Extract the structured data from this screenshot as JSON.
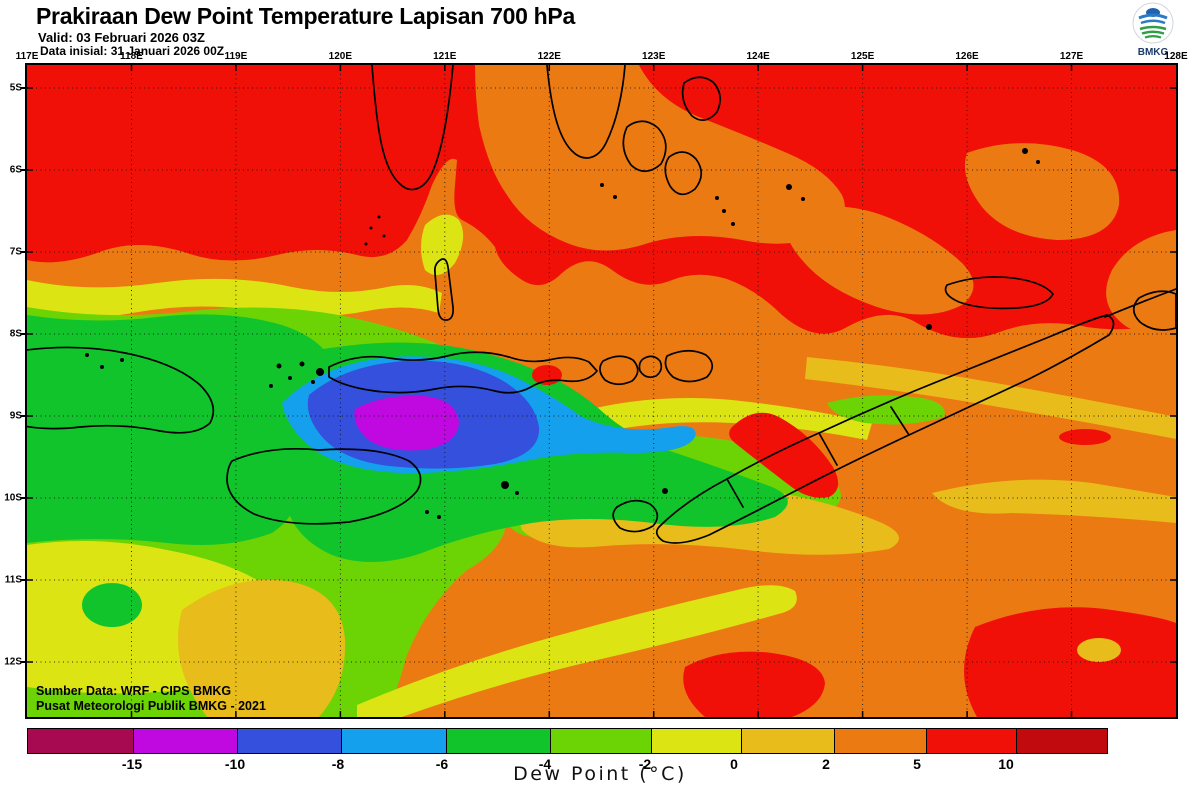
{
  "header": {
    "title": "Prakiraan Dew Point Temperature Lapisan 700 hPa",
    "valid_line": "Valid: 03 Februari 2026 03Z",
    "init_line": "Data inisial: 31 Januari 2026 00Z"
  },
  "logo": {
    "label": "BMKG"
  },
  "map": {
    "lon_ticks": [
      "117E",
      "118E",
      "119E",
      "120E",
      "121E",
      "122E",
      "123E",
      "124E",
      "125E",
      "126E",
      "127E",
      "128E"
    ],
    "lat_ticks": [
      "5S",
      "6S",
      "7S",
      "8S",
      "9S",
      "10S",
      "11S",
      "12S"
    ],
    "source_line1": "Sumber Data: WRF - CIPS BMKG",
    "source_line2": "Pusat Meteorologi Publik BMKG - 2021"
  },
  "colorbar": {
    "label": "Dew Point (°C)",
    "ticks": [
      "-15",
      "-10",
      "-8",
      "-6",
      "-4",
      "-2",
      "0",
      "2",
      "5",
      "10"
    ],
    "segment_colors": [
      "#A80A52",
      "#C008E0",
      "#3450DC",
      "#14A0EC",
      "#12C42C",
      "#6CD404",
      "#DCE414",
      "#E8BC1A",
      "#EC7A12",
      "#F01008",
      "#C00A0E"
    ],
    "field_colors": {
      "purple_core": "#C008E0",
      "blue": "#3450DC",
      "cyan": "#14A0EC",
      "green": "#12C42C",
      "chartreuse": "#6CD404",
      "yellow": "#DCE414",
      "gold": "#E8BC1A",
      "orange": "#EC7A12",
      "red": "#F01008"
    }
  }
}
